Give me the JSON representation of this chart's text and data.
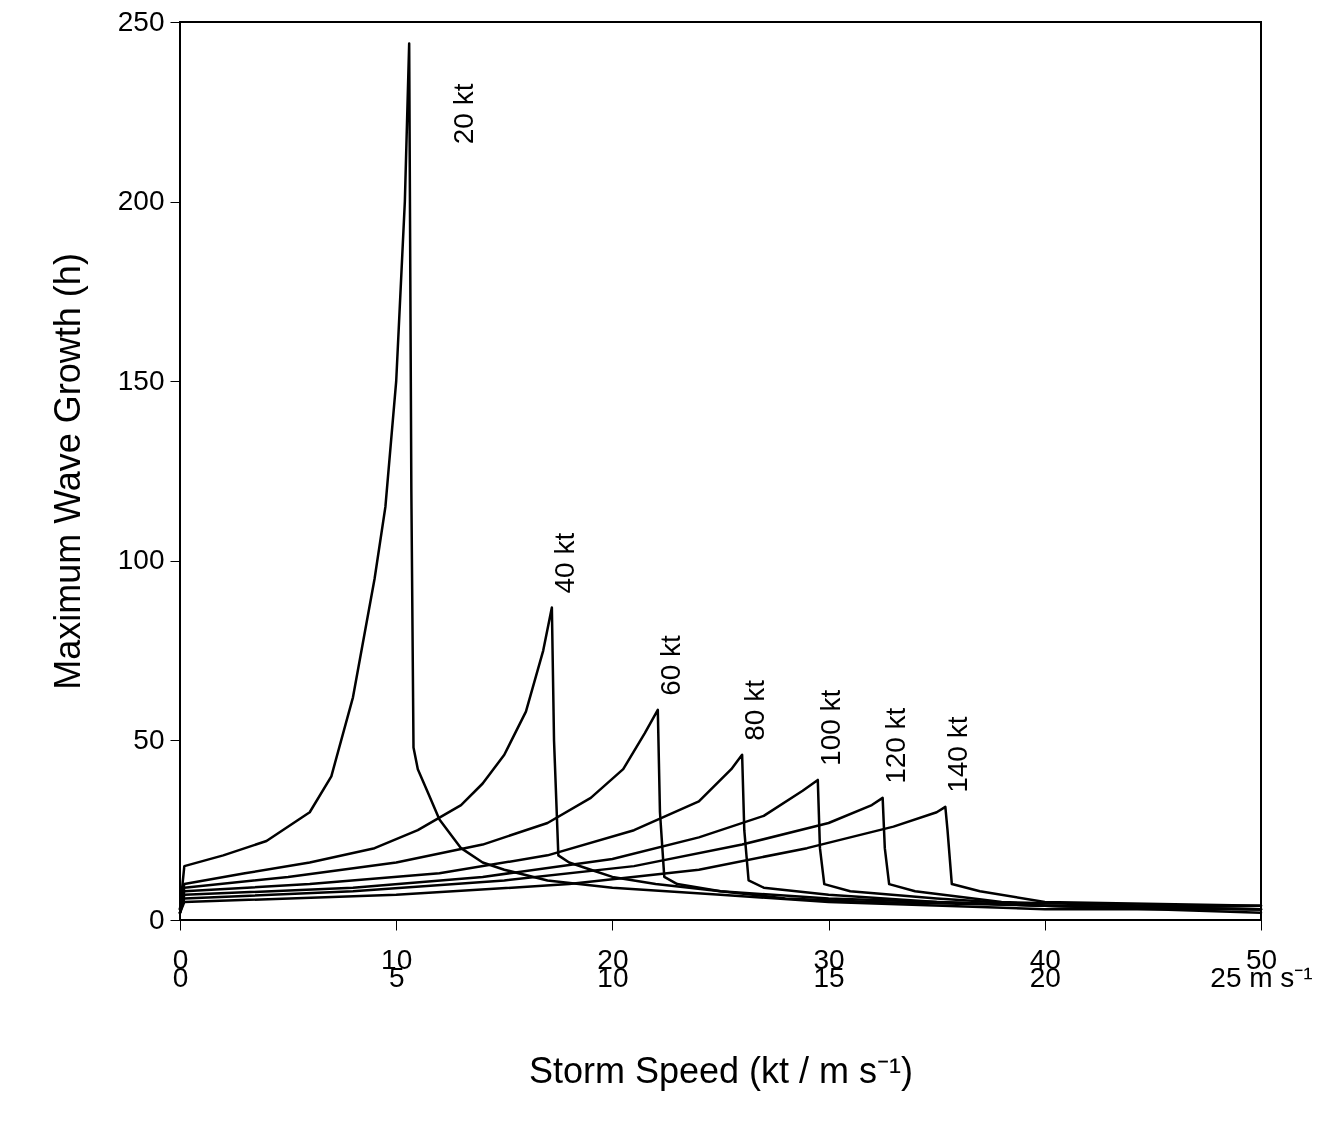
{
  "chart_data": {
    "type": "line",
    "xlabel": "Storm Speed (kt / m s⁻¹)",
    "ylabel": "Maximum Wave Growth (h)",
    "xlim": [
      0,
      50
    ],
    "xticks": [
      0,
      10,
      20,
      30,
      40,
      50
    ],
    "x2lim": [
      0,
      25
    ],
    "x2ticks": [
      0,
      5,
      10,
      15,
      20,
      {
        "value": 25,
        "label": "25 m s⁻¹"
      }
    ],
    "ylim": [
      0,
      250
    ],
    "yticks": [
      0,
      50,
      100,
      150,
      200,
      250
    ],
    "grid": false,
    "legend": false,
    "marker": "none",
    "line_style": "solid",
    "series": [
      {
        "name": "20 kt",
        "color": "#000000",
        "x": [
          0,
          0.2,
          2,
          4,
          6,
          7,
          8,
          9,
          9.5,
          10,
          10.4,
          10.6,
          10.7,
          10.8,
          11,
          11.5,
          12,
          13,
          14,
          15,
          17,
          20,
          25,
          30,
          40,
          50
        ],
        "values": [
          3,
          15,
          18,
          22,
          30,
          40,
          62,
          95,
          115,
          150,
          200,
          244,
          120,
          48,
          42,
          35,
          28,
          20,
          16,
          14,
          11,
          9,
          7,
          5,
          3,
          3
        ]
      },
      {
        "name": "40 kt",
        "color": "#000000",
        "x": [
          0,
          0.2,
          3,
          6,
          9,
          11,
          13,
          14,
          15,
          16,
          16.8,
          17.2,
          17.3,
          17.5,
          18,
          19,
          20,
          22,
          25,
          30,
          35,
          40,
          50
        ],
        "values": [
          3,
          10,
          13,
          16,
          20,
          25,
          32,
          38,
          46,
          58,
          75,
          87,
          50,
          18,
          16,
          14,
          12,
          10,
          8,
          6,
          5,
          4,
          3
        ]
      },
      {
        "name": "60 kt",
        "color": "#000000",
        "x": [
          0,
          0.2,
          5,
          10,
          14,
          17,
          19,
          20.5,
          21.5,
          22.1,
          22.2,
          22.4,
          23,
          25,
          28,
          32,
          40,
          50
        ],
        "values": [
          3,
          9,
          12,
          16,
          21,
          27,
          34,
          42,
          52,
          58.5,
          30,
          12,
          10,
          8,
          6,
          5,
          4,
          3
        ]
      },
      {
        "name": "80 kt",
        "color": "#000000",
        "x": [
          0,
          0.2,
          6,
          12,
          17,
          21,
          24,
          25.5,
          26,
          26.1,
          26.3,
          27,
          30,
          35,
          40,
          50
        ],
        "values": [
          2,
          8,
          10,
          13,
          18,
          25,
          33,
          42,
          46,
          25,
          11,
          9,
          7,
          5,
          4,
          3
        ]
      },
      {
        "name": "100 kt",
        "color": "#000000",
        "x": [
          0,
          0.2,
          8,
          14,
          20,
          24,
          27,
          28.8,
          29.5,
          29.6,
          29.8,
          31,
          35,
          40,
          50
        ],
        "values": [
          2,
          7,
          9,
          12,
          17,
          23,
          29,
          36,
          39,
          20,
          10,
          8,
          6,
          4,
          2
        ]
      },
      {
        "name": "120 kt",
        "color": "#000000",
        "x": [
          0,
          0.2,
          8,
          15,
          21,
          26,
          30,
          32,
          32.5,
          32.6,
          32.8,
          34,
          38,
          45,
          50
        ],
        "values": [
          2,
          6,
          8,
          11,
          15,
          21,
          27,
          32,
          34,
          20,
          10,
          8,
          5,
          4,
          4
        ]
      },
      {
        "name": "140 kt",
        "color": "#000000",
        "x": [
          0,
          0.2,
          10,
          18,
          24,
          29,
          33,
          35,
          35.4,
          35.5,
          35.7,
          37,
          40,
          50
        ],
        "values": [
          2,
          5,
          7,
          10,
          14,
          20,
          26,
          30,
          31.5,
          25,
          10,
          8,
          5,
          4
        ]
      }
    ]
  }
}
